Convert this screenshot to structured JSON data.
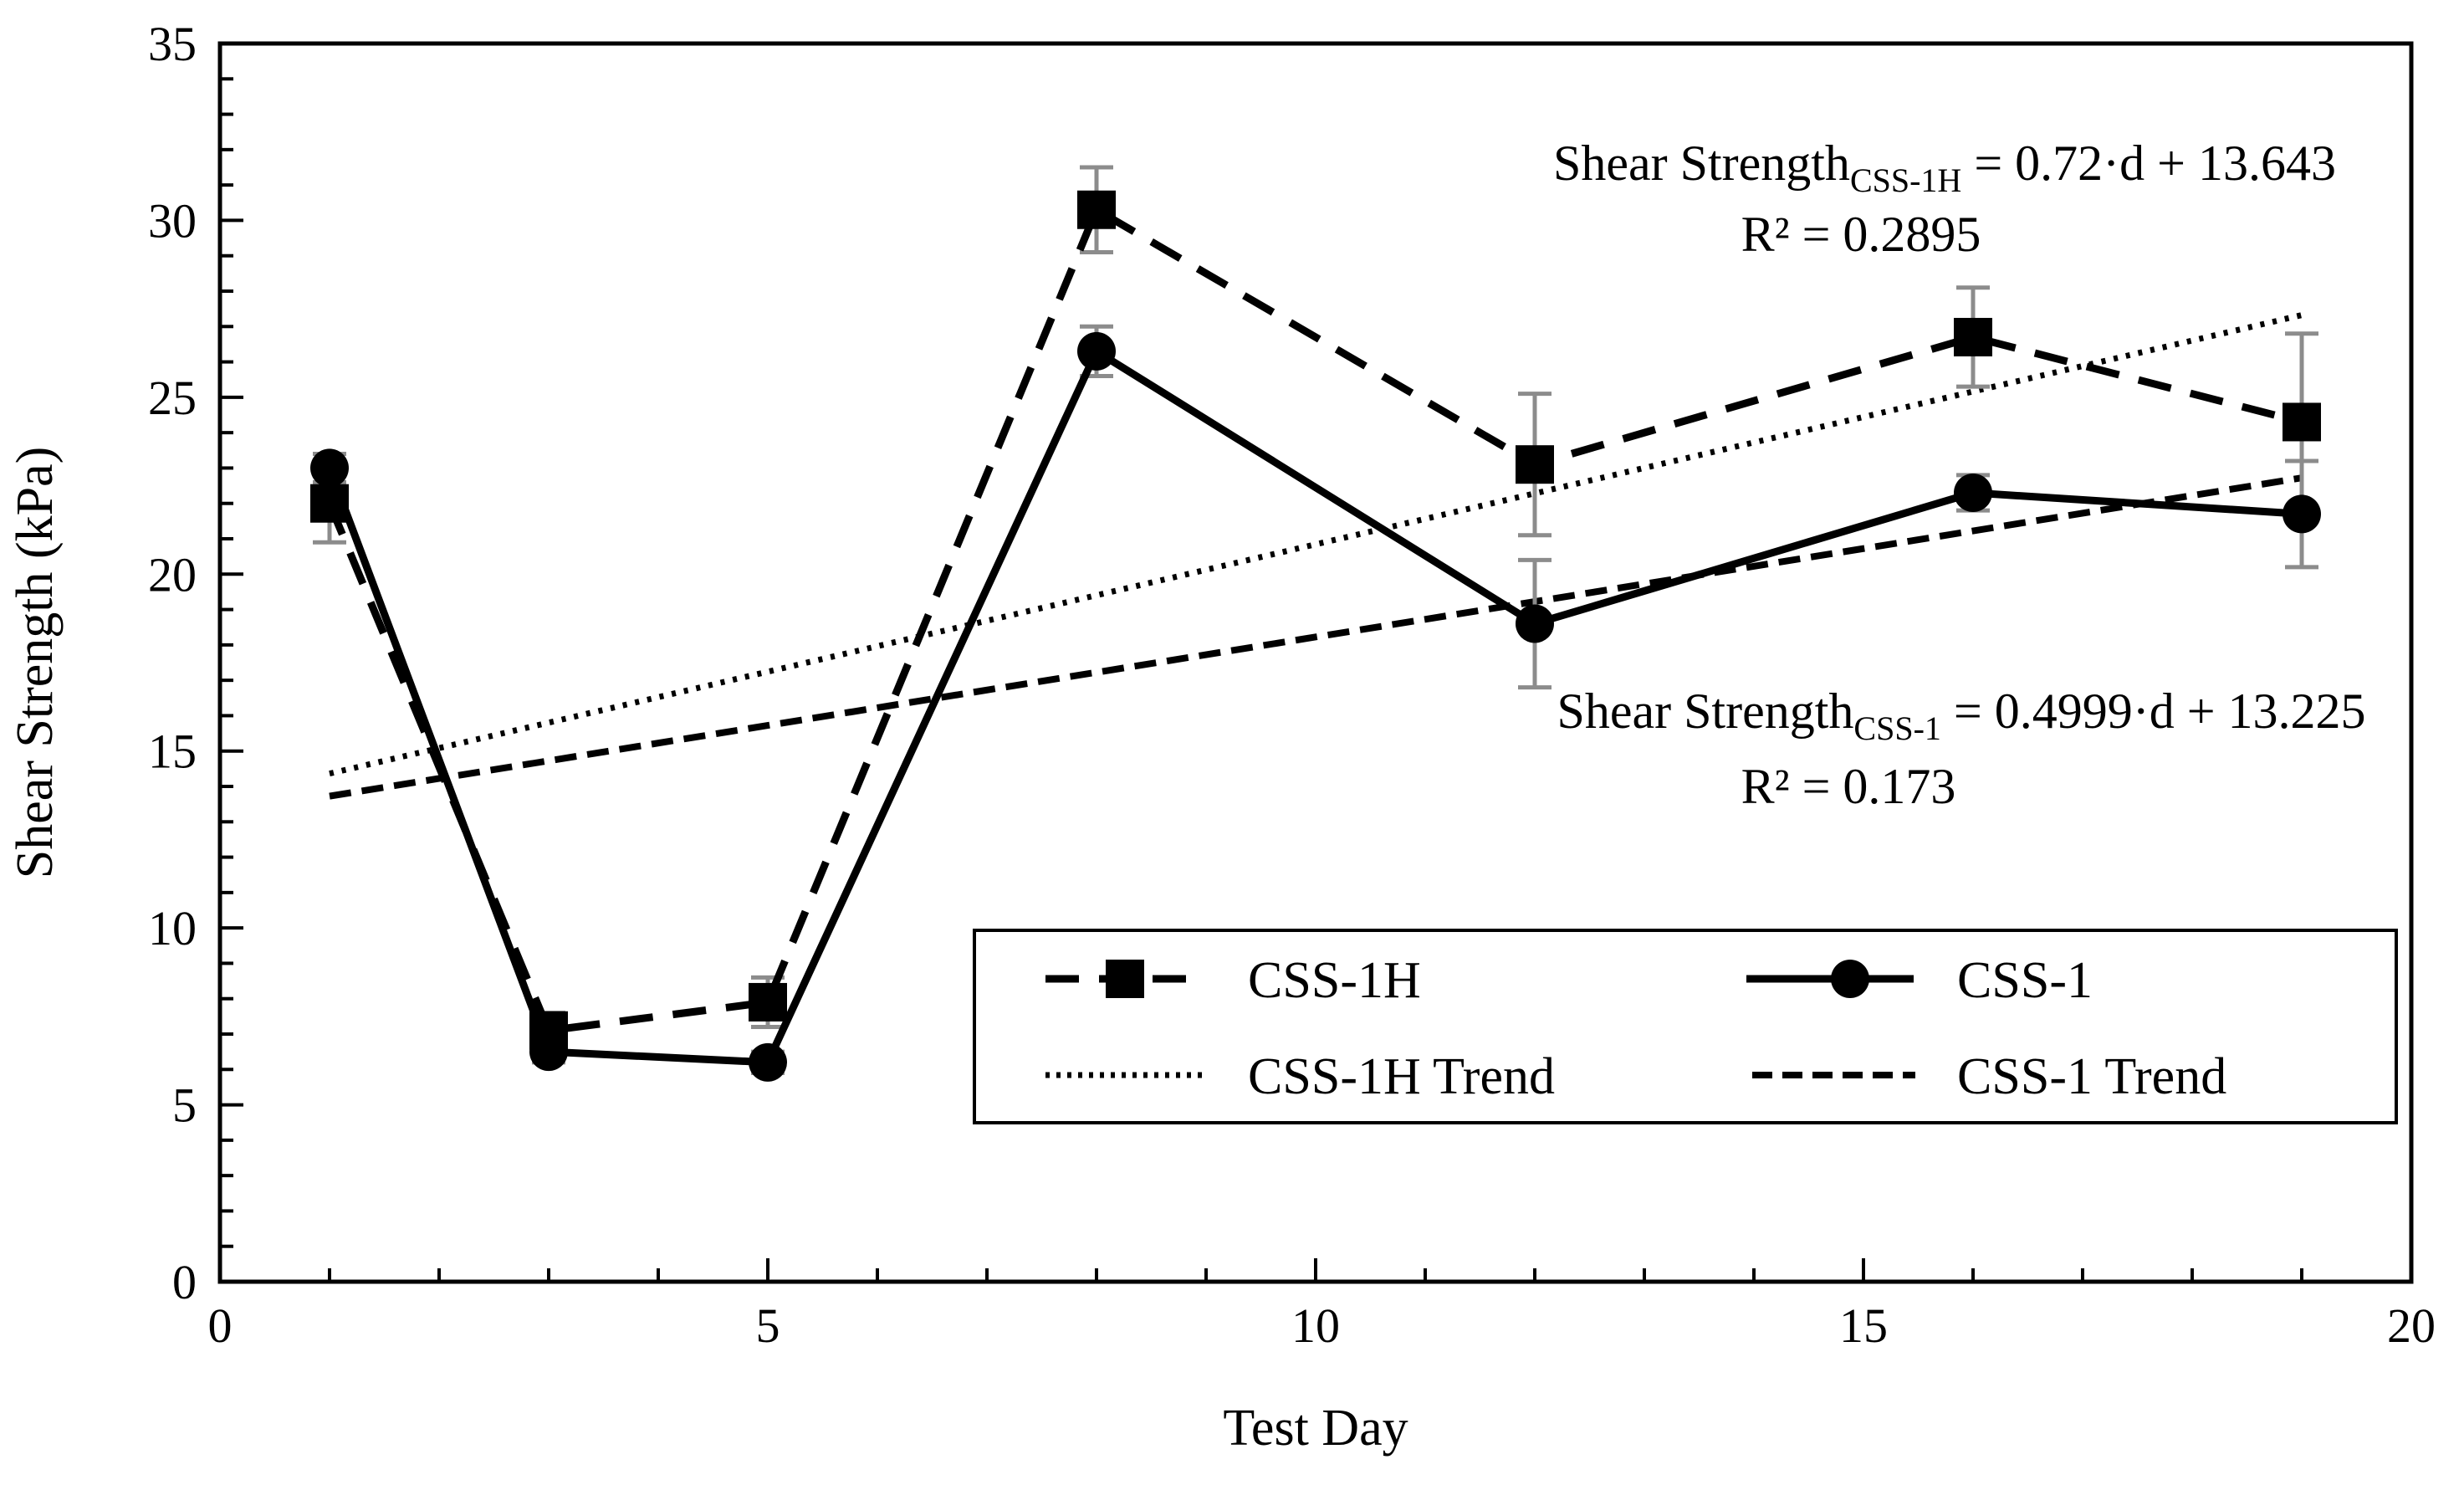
{
  "chart_data": {
    "type": "line",
    "xlabel": "Test Day",
    "ylabel": "Shear Strength (kPa)",
    "xlim": [
      0,
      20
    ],
    "ylim": [
      0,
      35
    ],
    "xticks": [
      0,
      5,
      10,
      15,
      20
    ],
    "yticks": [
      0,
      5,
      10,
      15,
      20,
      25,
      30,
      35
    ],
    "x_minor_step": 1,
    "y_minor_step": 1,
    "grid": false,
    "legend_position": "lower-right",
    "series": [
      {
        "name": "CSS-1H",
        "style": "dashed",
        "marker": "square",
        "x": [
          1,
          3,
          5,
          8,
          12,
          16,
          19
        ],
        "y": [
          22.0,
          7.1,
          7.9,
          30.3,
          23.1,
          26.7,
          24.3
        ],
        "error": [
          1.1,
          0.5,
          0.7,
          1.2,
          2.0,
          1.4,
          2.5
        ]
      },
      {
        "name": "CSS-1",
        "style": "solid",
        "marker": "circle",
        "x": [
          1,
          3,
          5,
          8,
          12,
          16,
          19
        ],
        "y": [
          23.0,
          6.5,
          6.2,
          26.3,
          18.6,
          22.3,
          21.7
        ],
        "error": [
          0.4,
          0.3,
          0.3,
          0.7,
          1.8,
          0.5,
          1.5
        ]
      },
      {
        "name": "CSS-1H Trend",
        "style": "dotted",
        "marker": "none",
        "slope": 0.72,
        "intercept": 13.643,
        "x_range": [
          1,
          19
        ]
      },
      {
        "name": "CSS-1 Trend",
        "style": "short-dashed",
        "marker": "none",
        "slope": 0.4999,
        "intercept": 13.225,
        "x_range": [
          1,
          19
        ]
      }
    ],
    "annotations": [
      {
        "label": "Shear Strength",
        "subscript": "CSS-1H",
        "equation": " = 0.72·d + 13.643",
        "r2": "R² = 0.2895"
      },
      {
        "label": "Shear Strength",
        "subscript": "CSS-1",
        "equation": " = 0.4999·d + 13.225",
        "r2": "R² = 0.173"
      }
    ]
  }
}
